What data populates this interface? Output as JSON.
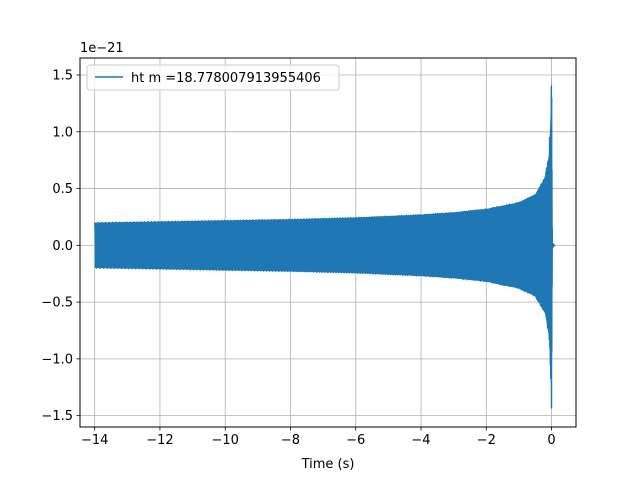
{
  "chart_data": {
    "type": "line",
    "title": "",
    "xlabel": "Time (s)",
    "ylabel": "",
    "y_offset_label": "1e−21",
    "y_scale_factor": 1e-21,
    "xlim": [
      -14.45,
      0.75
    ],
    "ylim": [
      -1.6,
      1.65
    ],
    "x_ticks": [
      -14,
      -12,
      -10,
      -8,
      -6,
      -4,
      -2,
      0
    ],
    "x_tick_labels": [
      "−14",
      "−12",
      "−10",
      "−8",
      "−6",
      "−4",
      "−2",
      "0"
    ],
    "y_ticks": [
      -1.5,
      -1.0,
      -0.5,
      0.0,
      0.5,
      1.0,
      1.5
    ],
    "y_tick_labels": [
      "−1.5",
      "−1.0",
      "−0.5",
      "0.0",
      "0.5",
      "1.0",
      "1.5"
    ],
    "grid": true,
    "legend_position": "top-left",
    "series_color": "#1f77b4",
    "series": [
      {
        "name": "ht m =18.778007913955406",
        "envelope_upper": {
          "x": [
            -14.0,
            -12.0,
            -10.0,
            -8.0,
            -6.0,
            -4.0,
            -3.0,
            -2.0,
            -1.0,
            -0.5,
            -0.2,
            -0.08,
            -0.03,
            0.0,
            0.03,
            0.1
          ],
          "y": [
            0.2,
            0.21,
            0.22,
            0.23,
            0.245,
            0.27,
            0.29,
            0.32,
            0.38,
            0.45,
            0.6,
            0.8,
            1.15,
            1.51,
            0.02,
            0.0
          ]
        },
        "envelope_lower": {
          "x": [
            -14.0,
            -12.0,
            -10.0,
            -8.0,
            -6.0,
            -4.0,
            -3.0,
            -2.0,
            -1.0,
            -0.5,
            -0.2,
            -0.08,
            -0.03,
            0.0,
            0.03,
            0.1
          ],
          "y": [
            -0.2,
            -0.21,
            -0.22,
            -0.23,
            -0.245,
            -0.27,
            -0.29,
            -0.32,
            -0.38,
            -0.45,
            -0.6,
            -0.8,
            -1.1,
            -1.45,
            -0.02,
            0.0
          ]
        }
      }
    ]
  }
}
